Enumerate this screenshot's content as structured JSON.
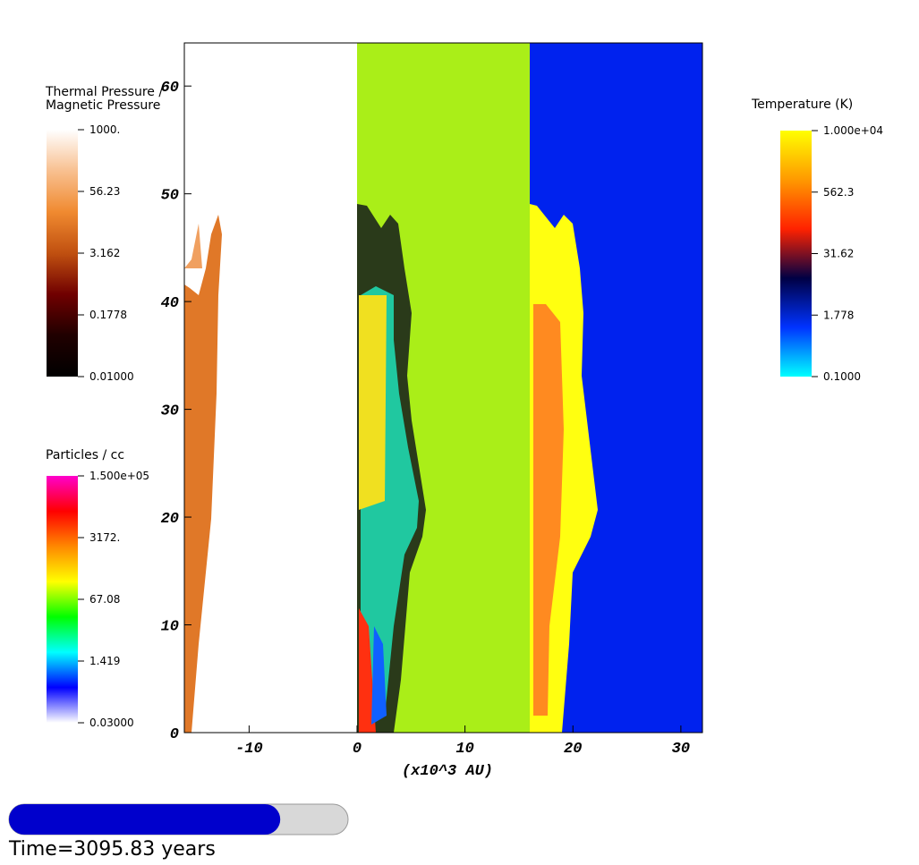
{
  "chart_data": {
    "type": "field",
    "xlabel": "(x10^3 AU)",
    "xlim": [
      -16,
      32
    ],
    "ylim": [
      0,
      64
    ],
    "xticks": [
      -10,
      0,
      10,
      20,
      30
    ],
    "yticks": [
      0,
      10,
      20,
      30,
      40,
      50,
      60
    ],
    "colorbars": [
      {
        "title": [
          "Thermal Pressure /",
          "Magnetic Pressure"
        ],
        "log": true,
        "range": [
          0.01,
          1000
        ],
        "ticks": [
          {
            "value": 1000,
            "label": "1000."
          },
          {
            "value": 56.23,
            "label": "56.23"
          },
          {
            "value": 3.162,
            "label": "3.162"
          },
          {
            "value": 0.1778,
            "label": "0.1778"
          },
          {
            "value": 0.01,
            "label": "0.01000"
          }
        ],
        "colors": [
          "#ffffff",
          "#f8c090",
          "#f08a30",
          "#c05010",
          "#700000",
          "#200000",
          "#000000"
        ]
      },
      {
        "title": [
          "Particles / cc"
        ],
        "log": true,
        "range": [
          0.03,
          150000
        ],
        "ticks": [
          {
            "value": 150000,
            "label": "1.500e+05"
          },
          {
            "value": 3172,
            "label": "3172."
          },
          {
            "value": 67.08,
            "label": "67.08"
          },
          {
            "value": 1.419,
            "label": "1.419"
          },
          {
            "value": 0.03,
            "label": "0.03000"
          }
        ],
        "colors": [
          "#ff00cc",
          "#ff0000",
          "#ff8800",
          "#ffff00",
          "#00ff00",
          "#00ffff",
          "#0000ff",
          "#ffffff"
        ]
      },
      {
        "title": [
          "Temperature (K)"
        ],
        "log": true,
        "range": [
          0.1,
          10000
        ],
        "ticks": [
          {
            "value": 10000,
            "label": "1.000e+04"
          },
          {
            "value": 562.3,
            "label": "562.3"
          },
          {
            "value": 31.62,
            "label": "31.62"
          },
          {
            "value": 1.778,
            "label": "1.778"
          },
          {
            "value": 0.1,
            "label": "0.1000"
          }
        ],
        "colors": [
          "#ffff00",
          "#ff9900",
          "#ff2200",
          "#000044",
          "#0033ff",
          "#00ffff"
        ]
      }
    ],
    "time_label": "Time=3095.83 years",
    "progress": 0.8
  }
}
